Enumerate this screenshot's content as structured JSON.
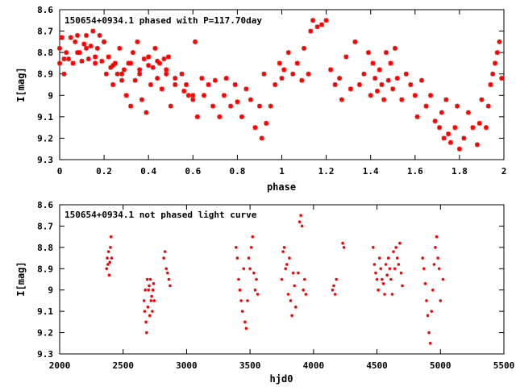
{
  "chart_data": [
    {
      "type": "scatter",
      "title": "150654+0934.1 phased with P=117.70day",
      "xlabel": "phase",
      "ylabel": "I[mag]",
      "xlim": [
        0,
        2
      ],
      "ylim": [
        8.6,
        9.3
      ],
      "y_inverted": true,
      "x_ticks": [
        0,
        0.2,
        0.4,
        0.6,
        0.8,
        1,
        1.2,
        1.4,
        1.6,
        1.8,
        2
      ],
      "x_tick_labels": [
        "0",
        "0.2",
        "0.4",
        "0.6",
        "0.8",
        "1",
        "1.2",
        "1.4",
        "1.6",
        "1.8",
        "2"
      ],
      "y_ticks": [
        8.6,
        8.7,
        8.8,
        8.9,
        9.0,
        9.1,
        9.2,
        9.3
      ],
      "y_tick_labels": [
        "8.6",
        "8.7",
        "8.8",
        "8.9",
        "9",
        "9.1",
        "9.2",
        "9.3"
      ],
      "marker_color": "#ff0000",
      "marker": "star",
      "grid": false,
      "x": [
        0.0,
        0.01,
        0.02,
        0.03,
        0.05,
        0.06,
        0.07,
        0.08,
        0.09,
        0.1,
        0.11,
        0.12,
        0.13,
        0.14,
        0.15,
        0.16,
        0.17,
        0.18,
        0.19,
        0.2,
        0.21,
        0.22,
        0.23,
        0.24,
        0.25,
        0.26,
        0.27,
        0.28,
        0.29,
        0.3,
        0.31,
        0.32,
        0.33,
        0.34,
        0.35,
        0.36,
        0.37,
        0.38,
        0.39,
        0.4,
        0.41,
        0.42,
        0.43,
        0.44,
        0.45,
        0.46,
        0.47,
        0.48,
        0.49,
        0.5,
        0.52,
        0.55,
        0.57,
        0.58,
        0.6,
        0.61,
        0.62,
        0.64,
        0.65,
        0.67,
        0.69,
        0.7,
        0.72,
        0.74,
        0.75,
        0.77,
        0.79,
        0.8,
        0.82,
        0.84,
        0.86,
        0.88,
        0.9,
        0.91,
        0.92,
        0.93,
        0.95,
        0.97,
        0.99,
        1.0,
        1.01,
        1.03,
        1.05,
        1.07,
        1.09,
        1.1,
        1.12,
        1.13,
        1.14,
        1.16,
        1.18,
        1.2,
        1.22,
        1.24,
        1.26,
        1.27,
        1.29,
        1.31,
        1.33,
        1.35,
        1.37,
        1.39,
        1.4,
        1.41,
        1.42,
        1.43,
        1.44,
        1.45,
        1.46,
        1.47,
        1.48,
        1.49,
        1.5,
        1.51,
        1.52,
        1.54,
        1.56,
        1.58,
        1.6,
        1.61,
        1.63,
        1.65,
        1.67,
        1.69,
        1.71,
        1.72,
        1.73,
        1.74,
        1.75,
        1.76,
        1.78,
        1.79,
        1.8,
        1.82,
        1.84,
        1.86,
        1.88,
        1.89,
        1.9,
        1.92,
        1.93,
        1.94,
        1.95,
        1.96,
        1.97,
        1.98,
        1.99,
        0.0,
        0.02,
        0.04,
        0.08,
        0.12,
        0.16,
        0.2,
        0.24,
        0.28,
        0.32,
        0.36,
        0.4,
        0.44,
        0.48,
        0.52,
        0.56,
        0.6
      ],
      "y": [
        8.85,
        8.73,
        8.9,
        8.8,
        8.73,
        8.85,
        8.75,
        8.72,
        8.8,
        8.84,
        8.76,
        8.72,
        8.83,
        8.77,
        8.7,
        8.85,
        8.78,
        8.72,
        8.84,
        8.75,
        8.9,
        8.82,
        8.87,
        8.95,
        8.85,
        8.9,
        8.78,
        8.93,
        8.88,
        9.0,
        8.85,
        9.05,
        8.8,
        8.93,
        8.75,
        8.9,
        9.02,
        8.83,
        9.08,
        8.82,
        8.95,
        8.87,
        8.78,
        8.92,
        8.85,
        8.97,
        8.83,
        8.9,
        8.82,
        9.05,
        8.92,
        8.9,
        8.95,
        9.0,
        9.02,
        8.75,
        9.1,
        8.92,
        9.0,
        8.95,
        9.05,
        8.93,
        9.1,
        9.0,
        8.92,
        9.05,
        8.95,
        9.03,
        9.1,
        8.97,
        9.02,
        9.15,
        9.05,
        9.2,
        8.9,
        9.13,
        9.05,
        8.95,
        8.85,
        8.92,
        8.88,
        8.8,
        8.9,
        8.85,
        8.93,
        8.78,
        8.9,
        8.7,
        8.65,
        8.68,
        8.67,
        8.65,
        8.88,
        8.95,
        8.92,
        9.02,
        8.82,
        8.97,
        8.75,
        8.95,
        8.9,
        8.8,
        9.0,
        8.85,
        8.92,
        8.98,
        8.88,
        8.95,
        9.02,
        8.8,
        8.93,
        8.85,
        8.97,
        8.78,
        8.92,
        9.02,
        8.9,
        8.95,
        9.0,
        9.1,
        8.93,
        9.05,
        9.0,
        9.12,
        9.15,
        9.08,
        9.2,
        9.02,
        9.18,
        9.22,
        9.15,
        9.05,
        9.25,
        9.2,
        9.08,
        9.15,
        9.23,
        9.13,
        9.02,
        9.15,
        9.05,
        8.95,
        8.9,
        8.85,
        8.8,
        8.75,
        8.92,
        8.78,
        8.83,
        8.83,
        8.8,
        8.78,
        8.82,
        8.75,
        8.86,
        8.9,
        8.85,
        8.88,
        8.86,
        8.84,
        8.88,
        8.95,
        8.98,
        9.0
      ]
    },
    {
      "type": "scatter",
      "title": "150654+0934.1 not phased light curve",
      "xlabel": "hjd0",
      "ylabel": "I[mag]",
      "xlim": [
        2000,
        5500
      ],
      "ylim": [
        8.6,
        9.3
      ],
      "y_inverted": true,
      "x_ticks": [
        2000,
        2500,
        3000,
        3500,
        4000,
        4500,
        5000,
        5500
      ],
      "x_tick_labels": [
        "2000",
        "2500",
        "3000",
        "3500",
        "4000",
        "4500",
        "5000",
        "5500"
      ],
      "y_ticks": [
        8.6,
        8.7,
        8.8,
        8.9,
        9.0,
        9.1,
        9.2,
        9.3
      ],
      "y_tick_labels": [
        "8.6",
        "8.7",
        "8.8",
        "8.9",
        "9",
        "9.1",
        "9.2",
        "9.3"
      ],
      "marker_color": "#ff0000",
      "marker": "dot",
      "grid": false,
      "x": [
        2370,
        2375,
        2380,
        2385,
        2390,
        2395,
        2400,
        2405,
        2410,
        2665,
        2670,
        2675,
        2680,
        2685,
        2690,
        2695,
        2700,
        2705,
        2710,
        2715,
        2720,
        2725,
        2730,
        2735,
        2740,
        2745,
        2820,
        2830,
        2840,
        2850,
        2860,
        2870,
        3390,
        3400,
        3410,
        3420,
        3430,
        3440,
        3450,
        3460,
        3470,
        3480,
        3490,
        3500,
        3510,
        3520,
        3530,
        3540,
        3550,
        3560,
        3750,
        3760,
        3770,
        3780,
        3790,
        3800,
        3810,
        3820,
        3830,
        3840,
        3850,
        3860,
        3880,
        3890,
        3900,
        3910,
        3920,
        3930,
        3940,
        4150,
        4160,
        4170,
        4180,
        4230,
        4240,
        4470,
        4480,
        4490,
        4500,
        4510,
        4520,
        4530,
        4540,
        4550,
        4560,
        4570,
        4580,
        4590,
        4600,
        4610,
        4620,
        4630,
        4640,
        4650,
        4660,
        4670,
        4680,
        4690,
        4700,
        4860,
        4870,
        4880,
        4890,
        4900,
        4910,
        4920,
        4930,
        4940,
        4950,
        4960,
        4970,
        4980,
        4990,
        5000,
        5020
      ],
      "y": [
        8.9,
        8.85,
        8.88,
        8.82,
        8.93,
        8.87,
        8.8,
        8.75,
        8.85,
        9.05,
        9.1,
        9.0,
        9.15,
        9.2,
        8.95,
        9.08,
        9.0,
        8.98,
        9.12,
        8.95,
        9.05,
        9.03,
        9.1,
        9.0,
        8.97,
        9.05,
        8.85,
        8.82,
        8.9,
        8.92,
        8.95,
        8.98,
        8.8,
        8.85,
        8.95,
        9.0,
        9.05,
        9.1,
        8.9,
        9.15,
        9.18,
        9.05,
        8.85,
        8.9,
        8.8,
        8.75,
        8.92,
        9.0,
        8.95,
        9.02,
        8.95,
        8.82,
        8.8,
        8.9,
        8.88,
        9.02,
        8.85,
        9.05,
        9.12,
        8.92,
        8.98,
        9.08,
        8.92,
        8.68,
        8.65,
        8.7,
        9.0,
        8.95,
        9.02,
        9.0,
        8.98,
        9.02,
        8.95,
        8.78,
        8.8,
        8.8,
        8.88,
        8.92,
        8.95,
        9.0,
        8.85,
        8.9,
        8.95,
        8.97,
        9.02,
        8.88,
        8.93,
        8.85,
        8.9,
        8.95,
        9.02,
        8.82,
        8.9,
        8.8,
        8.85,
        8.88,
        8.78,
        8.92,
        8.98,
        8.85,
        8.9,
        8.97,
        9.05,
        9.12,
        9.2,
        9.25,
        9.1,
        9.0,
        8.88,
        8.8,
        8.75,
        8.85,
        8.9,
        9.05,
        8.95
      ]
    }
  ]
}
